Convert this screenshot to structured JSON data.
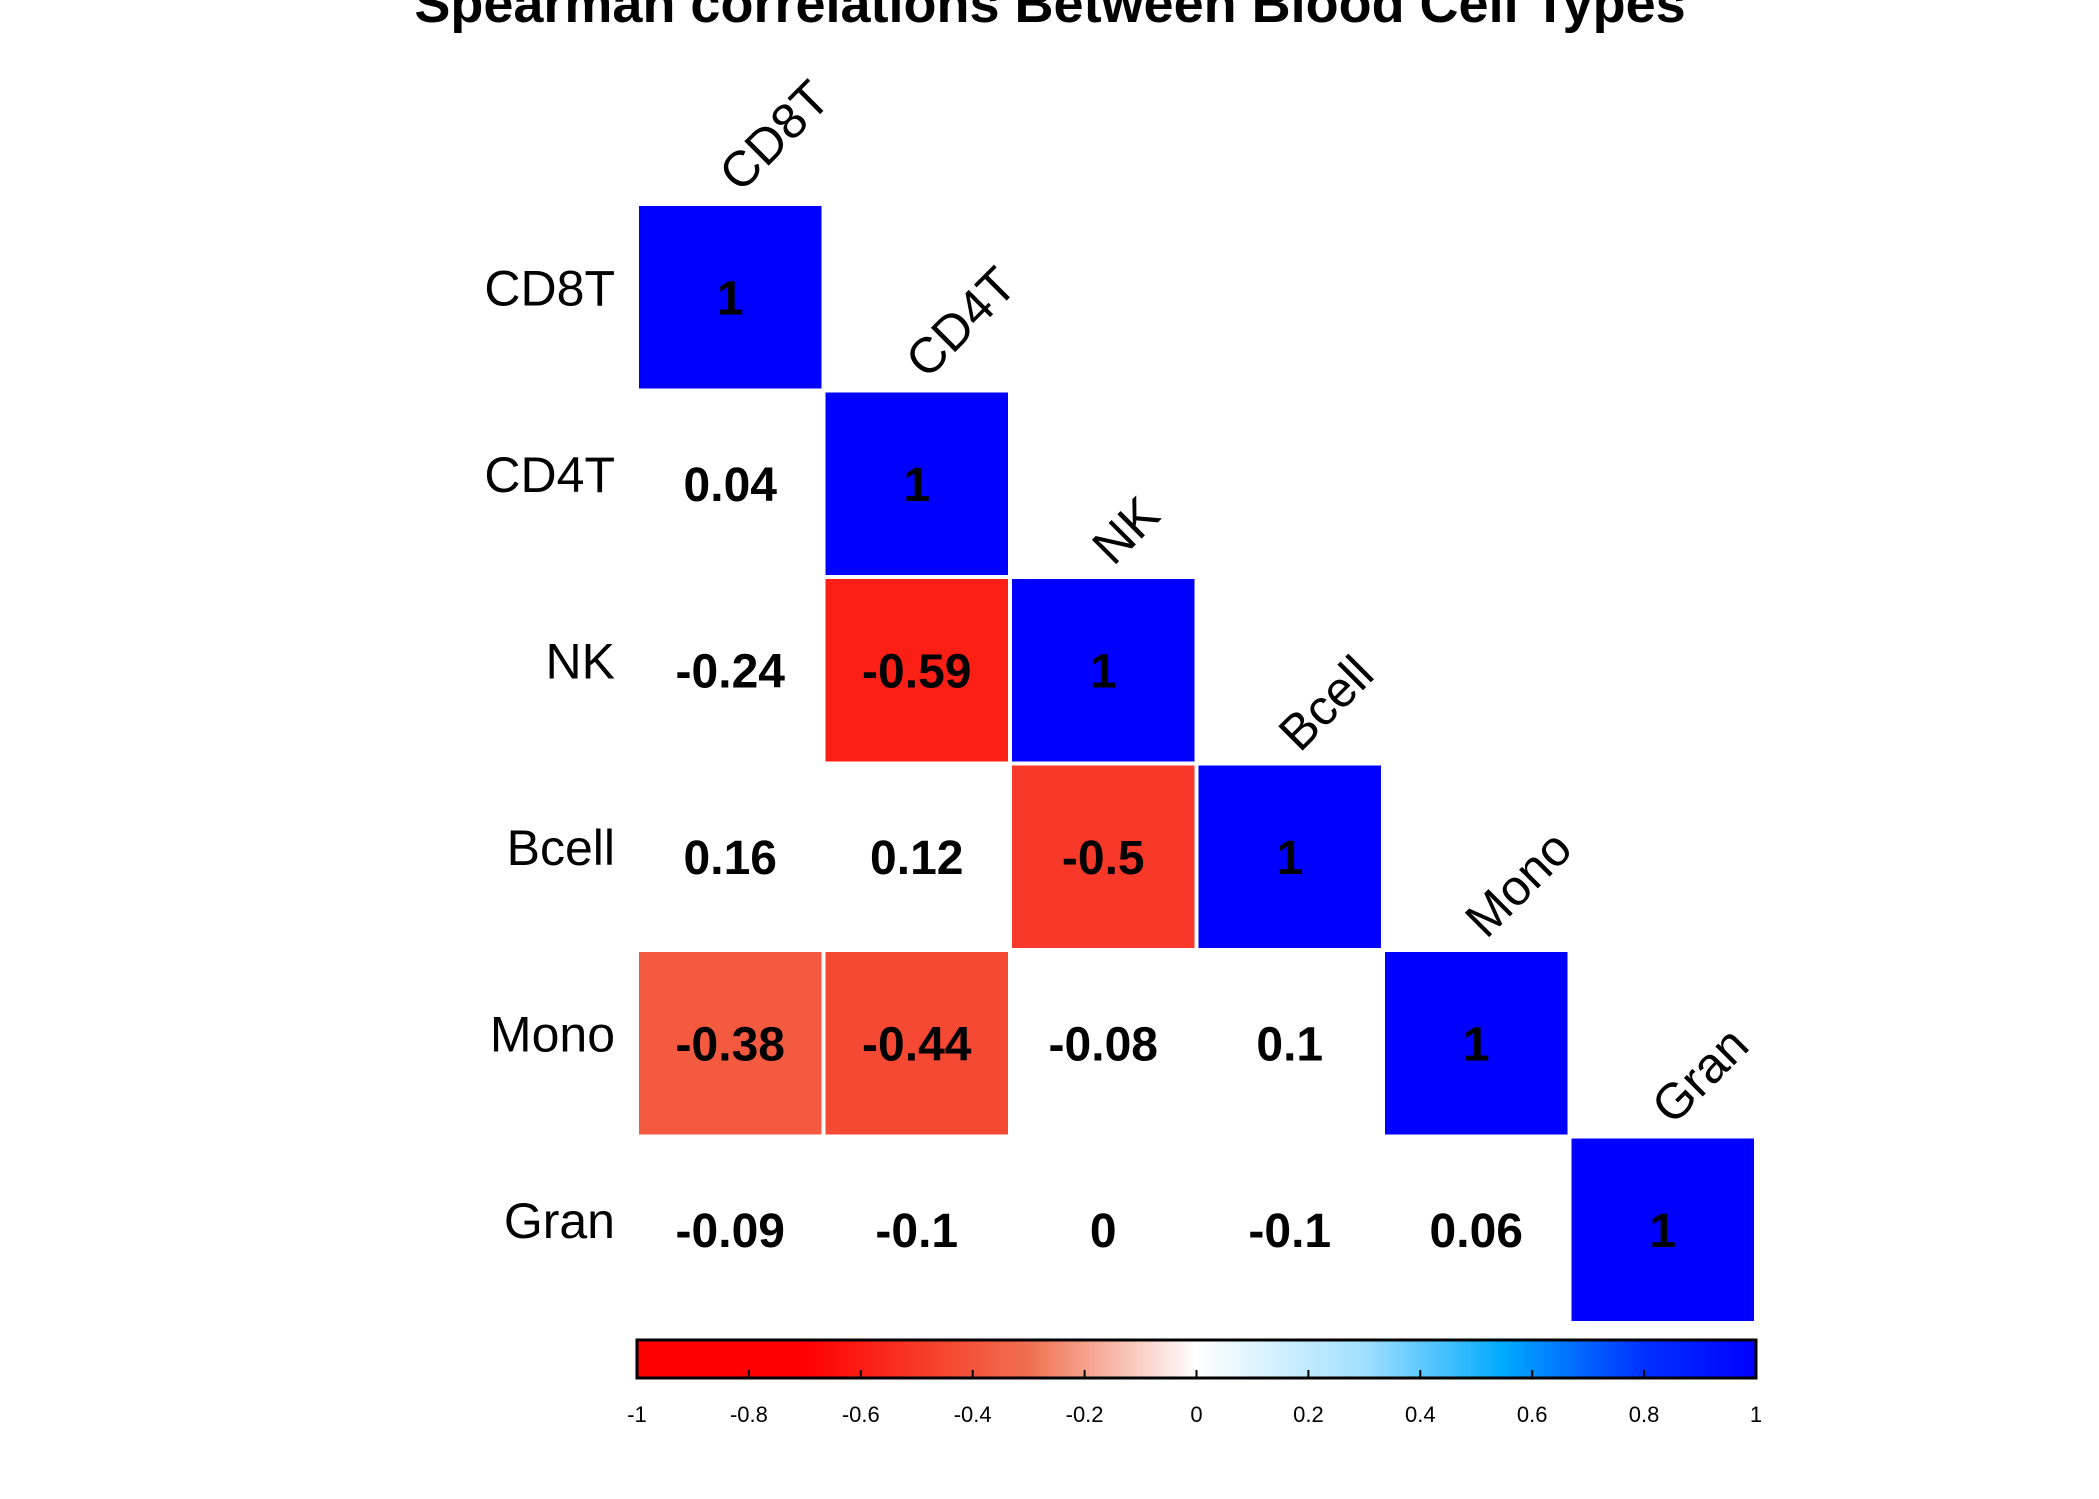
{
  "chart_data": {
    "type": "heatmap",
    "title": "Spearman correlations Between Blood Cell Types",
    "variables": [
      "CD8T",
      "CD4T",
      "NK",
      "Bcell",
      "Mono",
      "Gran"
    ],
    "matrix_lower": [
      [
        1
      ],
      [
        0.04,
        1
      ],
      [
        -0.24,
        -0.59,
        1
      ],
      [
        0.16,
        0.12,
        -0.5,
        1
      ],
      [
        -0.38,
        -0.44,
        -0.08,
        0.1,
        1
      ],
      [
        -0.09,
        -0.1,
        0,
        -0.1,
        0.06,
        1
      ]
    ],
    "value_labels": [
      [
        "1"
      ],
      [
        "0.04",
        "1"
      ],
      [
        "-0.24",
        "-0.59",
        "1"
      ],
      [
        "0.16",
        "0.12",
        "-0.5",
        "1"
      ],
      [
        "-0.38",
        "-0.44",
        "-0.08",
        "0.1",
        "1"
      ],
      [
        "-0.09",
        "-0.1",
        "0",
        "-0.1",
        "0.06",
        "1"
      ]
    ],
    "colored_cells": [
      [
        0,
        0
      ],
      [
        1,
        1
      ],
      [
        2,
        1
      ],
      [
        2,
        2
      ],
      [
        3,
        2
      ],
      [
        3,
        3
      ],
      [
        4,
        0
      ],
      [
        4,
        1
      ],
      [
        4,
        4
      ],
      [
        5,
        5
      ]
    ],
    "colorbar": {
      "range": [
        -1,
        1
      ],
      "ticks": [
        "-1",
        "-0.8",
        "-0.6",
        "-0.4",
        "-0.2",
        "0",
        "0.2",
        "0.4",
        "0.6",
        "0.8",
        "1"
      ],
      "stops": [
        {
          "value": -1,
          "color": "#ff0000"
        },
        {
          "value": -0.7,
          "color": "#ff0000"
        },
        {
          "value": -0.3,
          "color": "#f07050"
        },
        {
          "value": 0,
          "color": "#ffffff"
        },
        {
          "value": 0.3,
          "color": "#a0e0ff"
        },
        {
          "value": 0.55,
          "color": "#00aaff"
        },
        {
          "value": 0.8,
          "color": "#0030ff"
        },
        {
          "value": 1,
          "color": "#0000ff"
        }
      ]
    },
    "legend_position": "bottom"
  }
}
